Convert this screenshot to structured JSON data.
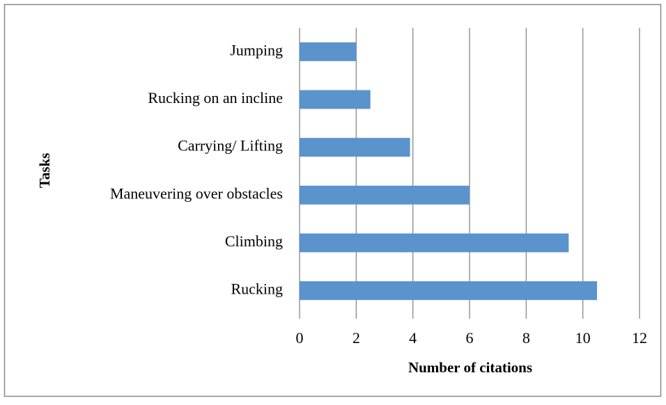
{
  "chart_data": {
    "type": "barh",
    "categories": [
      "Jumping",
      "Rucking on an incline",
      "Carrying/ Lifting",
      "Maneuvering over obstacles",
      "Climbing",
      "Rucking"
    ],
    "values": [
      2,
      2.5,
      3.9,
      6,
      9.5,
      10.5
    ],
    "color": "#5b93cd",
    "xlabel": "Number of citations",
    "ylabel": "Tasks",
    "xlim": [
      0,
      12
    ],
    "xticks": [
      0,
      2,
      4,
      6,
      8,
      10,
      12
    ],
    "grid": true
  }
}
